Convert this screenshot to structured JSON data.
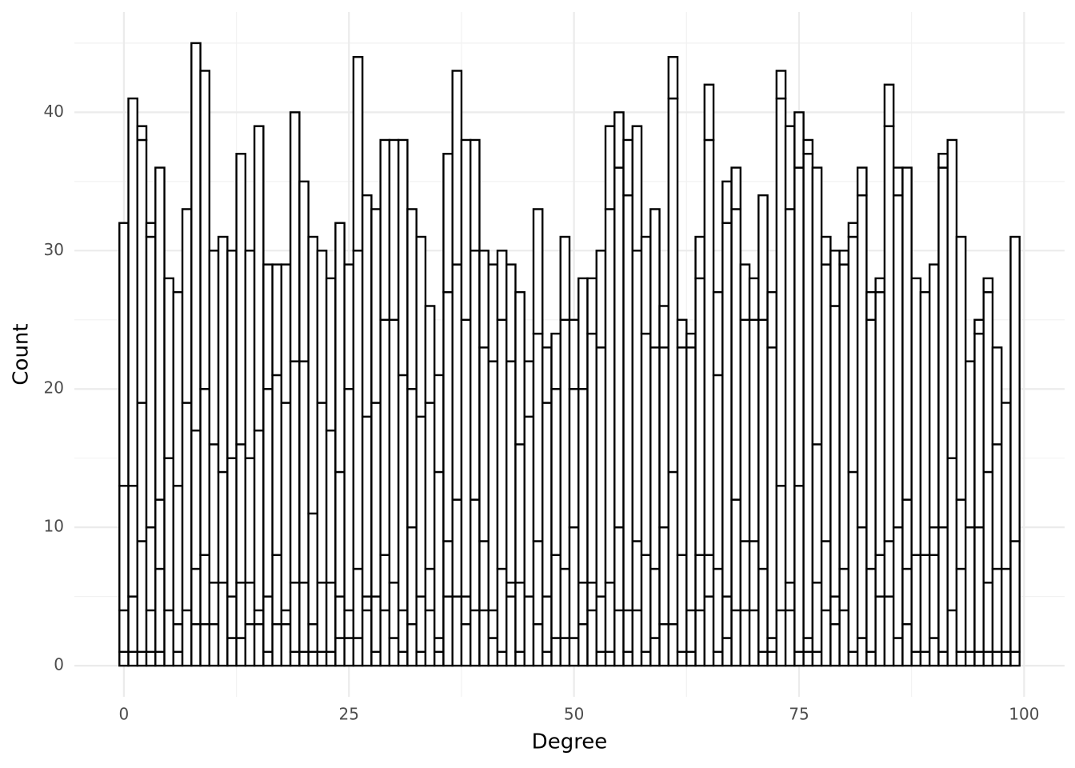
{
  "chart_data": {
    "type": "histogram",
    "x_label": "Degree",
    "y_label": "Count",
    "bins": [
      -0.5,
      0.5,
      1.5,
      2.5,
      3.5,
      4.5,
      5.5,
      6.5,
      7.5,
      8.5,
      9.5,
      10.5,
      11.5,
      12.5,
      13.5,
      14.5,
      15.5,
      16.5,
      17.5,
      18.5,
      19.5,
      20.5,
      21.5,
      22.5,
      23.5,
      24.5,
      25.5,
      26.5,
      27.5,
      28.5,
      29.5,
      30.5,
      31.5,
      32.5,
      33.5,
      34.5,
      35.5,
      36.5,
      37.5,
      38.5,
      39.5,
      40.5,
      41.5,
      42.5,
      43.5,
      44.5,
      45.5,
      46.5,
      47.5,
      48.5,
      49.5,
      50.5,
      51.5,
      52.5,
      53.5,
      54.5,
      55.5,
      56.5,
      57.5,
      58.5,
      59.5,
      60.5,
      61.5,
      62.5,
      63.5,
      64.5,
      65.5,
      66.5,
      67.5,
      68.5,
      69.5,
      70.5,
      71.5,
      72.5,
      73.5,
      74.5,
      75.5,
      76.5,
      77.5,
      78.5,
      79.5,
      80.5,
      81.5,
      82.5,
      83.5,
      84.5,
      85.5,
      86.5,
      87.5,
      88.5,
      89.5,
      90.5,
      91.5,
      92.5,
      93.5,
      94.5,
      95.5,
      96.5,
      97.5,
      98.5,
      99.5
    ],
    "series": [
      {
        "color": "#ffffff",
        "values": [
          1,
          1,
          1,
          1,
          1,
          0,
          1,
          0,
          3,
          3,
          3,
          0,
          2,
          2,
          3,
          3,
          1,
          3,
          3,
          1,
          1,
          1,
          1,
          1,
          2,
          2,
          2,
          4,
          1,
          4,
          2,
          1,
          3,
          1,
          4,
          1,
          5,
          5,
          3,
          4,
          4,
          2,
          1,
          5,
          1,
          0,
          3,
          1,
          2,
          2,
          2,
          3,
          4,
          1,
          1,
          4,
          1,
          4,
          1,
          2,
          3,
          3,
          1,
          1,
          4,
          5,
          1,
          2,
          4,
          4,
          4,
          1,
          1,
          4,
          4,
          1,
          1,
          1,
          4,
          3,
          4,
          1,
          2,
          1,
          5,
          5,
          2,
          3,
          1,
          1,
          2,
          1,
          4,
          1,
          1,
          1,
          1,
          1,
          1,
          1
        ]
      },
      {
        "color": "#ffffff",
        "values": [
          3,
          4,
          8,
          3,
          6,
          4,
          2,
          4,
          4,
          5,
          3,
          6,
          3,
          4,
          3,
          1,
          4,
          5,
          1,
          5,
          5,
          2,
          5,
          5,
          3,
          2,
          5,
          1,
          4,
          4,
          4,
          3,
          7,
          4,
          3,
          1,
          4,
          7,
          2,
          8,
          5,
          2,
          6,
          1,
          5,
          5,
          6,
          4,
          6,
          5,
          8,
          3,
          2,
          4,
          5,
          6,
          3,
          5,
          7,
          5,
          7,
          11,
          7,
          3,
          4,
          3,
          6,
          3,
          8,
          5,
          5,
          6,
          1,
          9,
          2,
          12,
          1,
          5,
          5,
          2,
          3,
          13,
          8,
          6,
          3,
          4,
          8,
          4,
          7,
          7,
          6,
          9,
          11,
          6,
          9,
          9,
          5,
          6,
          6,
          8
        ]
      },
      {
        "color": "#ffffff",
        "values": [
          9,
          8,
          10,
          6,
          5,
          11,
          10,
          15,
          10,
          12,
          10,
          8,
          10,
          10,
          9,
          13,
          15,
          13,
          15,
          16,
          16,
          8,
          13,
          11,
          9,
          16,
          23,
          13,
          14,
          17,
          19,
          17,
          10,
          13,
          12,
          12,
          18,
          17,
          20,
          18,
          14,
          18,
          18,
          16,
          10,
          13,
          15,
          14,
          12,
          18,
          10,
          14,
          18,
          18,
          27,
          26,
          30,
          21,
          16,
          16,
          13,
          27,
          15,
          19,
          20,
          30,
          14,
          27,
          21,
          16,
          16,
          18,
          21,
          28,
          27,
          23,
          35,
          10,
          20,
          21,
          22,
          17,
          24,
          18,
          19,
          30,
          24,
          5,
          20,
          19,
          2,
          26,
          23,
          5,
          12,
          14,
          8,
          9,
          12,
          22
        ]
      },
      {
        "color": "#ffffff",
        "values": [
          0,
          0,
          19,
          21,
          0,
          0,
          0,
          0,
          0,
          0,
          0,
          0,
          0,
          0,
          0,
          0,
          0,
          0,
          0,
          0,
          0,
          0,
          0,
          0,
          0,
          0,
          0,
          0,
          0,
          0,
          0,
          0,
          0,
          0,
          0,
          0,
          0,
          0,
          0,
          0,
          0,
          0,
          0,
          0,
          0,
          0,
          0,
          0,
          0,
          0,
          0,
          0,
          0,
          0,
          0,
          0,
          4,
          0,
          0,
          0,
          0,
          0,
          0,
          0,
          0,
          0,
          0,
          0,
          0,
          0,
          0,
          0,
          0,
          0,
          0,
          0,
          0,
          0,
          0,
          0,
          0,
          0,
          0,
          0,
          0,
          0,
          0,
          0,
          0,
          0,
          0,
          0,
          0,
          0,
          0,
          0,
          13,
          0,
          0,
          0
        ]
      },
      {
        "color": "#ffffff",
        "values": [
          19,
          28,
          1,
          1,
          24,
          13,
          14,
          14,
          28,
          23,
          14,
          17,
          15,
          21,
          15,
          22,
          9,
          8,
          10,
          18,
          13,
          20,
          11,
          11,
          18,
          9,
          14,
          16,
          14,
          13,
          13,
          17,
          13,
          13,
          7,
          7,
          10,
          14,
          13,
          8,
          7,
          7,
          5,
          7,
          11,
          4,
          9,
          4,
          4,
          6,
          5,
          8,
          4,
          7,
          6,
          4,
          0,
          9,
          7,
          10,
          3,
          3,
          2,
          1,
          3,
          4,
          6,
          3,
          3,
          4,
          3,
          9,
          4,
          2,
          6,
          4,
          1,
          20,
          2,
          4,
          1,
          1,
          2,
          2,
          1,
          3,
          2,
          24,
          0,
          0,
          19,
          1,
          0,
          19,
          0,
          1,
          1,
          7,
          0,
          0
        ]
      }
    ],
    "outline": "#000000",
    "xlim": [
      -5.5,
      104.5
    ],
    "xticks": [
      0,
      25,
      50,
      75,
      100
    ],
    "xminor": [
      12.5,
      37.5,
      62.5,
      87.5
    ],
    "ylim": [
      -2.25,
      47.25
    ],
    "yticks": [
      0,
      10,
      20,
      30,
      40
    ],
    "yminor": [
      5,
      15,
      25,
      35,
      45
    ],
    "grid": true
  }
}
